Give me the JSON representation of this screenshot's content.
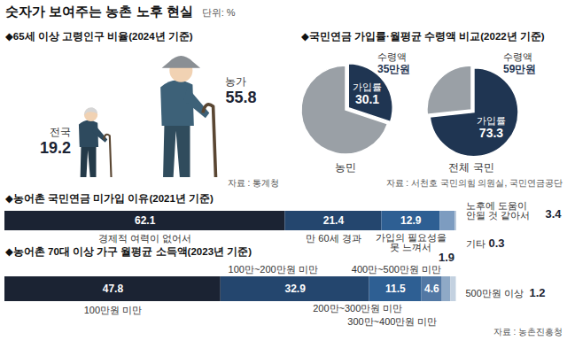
{
  "title": "숫자가 보여주는 농촌 노후 현실",
  "subtitle": "단위: %",
  "chart_data": [
    {
      "type": "pictogram",
      "title": "◆65세 이상 고령인구 비율(2024년 기준)",
      "source": "자료 : 통계청",
      "categories": [
        "전국",
        "농가"
      ],
      "values": [
        19.2,
        55.8
      ],
      "colors": [
        "#2e4a5e",
        "#3d6178"
      ],
      "data_labels": true
    },
    {
      "type": "pie",
      "title": "◆국민연금 가입률·월평균 수령액 비교(2022년 기준)",
      "source": "자료 : 서천호 국민의힘 의원실, 국민연금공단",
      "pies": [
        {
          "name": "농민",
          "categories": [
            "가입률",
            null
          ],
          "values": [
            30.1,
            69.9
          ],
          "colors": [
            "#1f3552",
            "#9aa0a6"
          ],
          "amount_label": "수령액",
          "amount": "35만원"
        },
        {
          "name": "전체 국민",
          "categories": [
            "가입률",
            null
          ],
          "values": [
            73.3,
            26.7
          ],
          "colors": [
            "#1f3552",
            "#9aa0a6"
          ],
          "amount_label": "수령액",
          "amount": "59만원"
        }
      ]
    },
    {
      "type": "bar",
      "title": "◆농어촌 국민연금 미가입 이유(2021년 기준)",
      "orientation": "horizontal",
      "stacked": true,
      "categories": [
        "경제적 여력이 없어서",
        "만 60세 경과",
        "가입의 필요성을 못 느껴서",
        "노후에 도움이 안될 것 같아서",
        "기타"
      ],
      "values": [
        62.1,
        21.4,
        12.9,
        3.4,
        0.3
      ],
      "colors": [
        "#1b2333",
        "#24466e",
        "#2e5f93",
        "#7d9cc0",
        "#b9c8da"
      ],
      "xlim": [
        0,
        100.1
      ],
      "xticks": [],
      "tick_labels": false,
      "data_labels": true
    },
    {
      "type": "bar",
      "title": "◆농어촌 70대 이상 가구 월평균 소득액(2023년 기준)",
      "source": "자료 : 농촌진흥청",
      "orientation": "horizontal",
      "stacked": true,
      "categories": [
        "100만원 미만",
        "100만~200만원 미만",
        "200만~300만원 미만",
        "300만~400만원 미만",
        "400만~500만원 미만",
        "500만원 이상"
      ],
      "values": [
        47.8,
        32.9,
        11.5,
        4.6,
        1.9,
        1.2
      ],
      "colors": [
        "#1b2333",
        "#24466e",
        "#2e5f93",
        "#5278a4",
        "#8fa9c6",
        "#c3d1e0"
      ],
      "xlim": [
        0,
        100
      ],
      "xticks": [],
      "tick_labels": false,
      "data_labels": true
    }
  ]
}
